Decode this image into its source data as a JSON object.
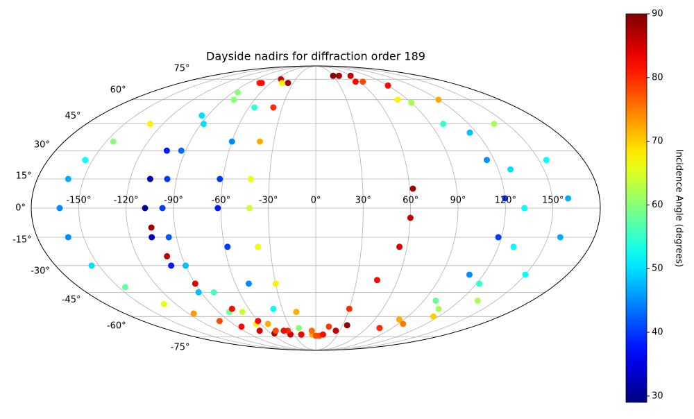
{
  "chart_data": {
    "type": "scatter",
    "projection": "mollweide",
    "title": "Dayside nadirs for diffraction order 189",
    "colorbar_label": "Incidence Angle (degrees)",
    "colormap": "jet",
    "clim": [
      29,
      90
    ],
    "cticks": [
      30,
      40,
      50,
      60,
      70,
      80,
      90
    ],
    "grid": true,
    "xticks": [
      {
        "value": -150,
        "label": "-150°"
      },
      {
        "value": -120,
        "label": "-120°"
      },
      {
        "value": -90,
        "label": "-90°"
      },
      {
        "value": -60,
        "label": "-60°"
      },
      {
        "value": -30,
        "label": "-30°"
      },
      {
        "value": 0,
        "label": "0°"
      },
      {
        "value": 30,
        "label": "30°"
      },
      {
        "value": 60,
        "label": "60°"
      },
      {
        "value": 90,
        "label": "90°"
      },
      {
        "value": 120,
        "label": "120°"
      },
      {
        "value": 150,
        "label": "150°"
      }
    ],
    "yticks": [
      {
        "value": -75,
        "label": "-75°"
      },
      {
        "value": -60,
        "label": "-60°"
      },
      {
        "value": -45,
        "label": "-45°"
      },
      {
        "value": -30,
        "label": "-30°"
      },
      {
        "value": -15,
        "label": "-15°"
      },
      {
        "value": 0,
        "label": "0°"
      },
      {
        "value": 15,
        "label": "15°"
      },
      {
        "value": 30,
        "label": "30°"
      },
      {
        "value": 45,
        "label": "45°"
      },
      {
        "value": 60,
        "label": "60°"
      },
      {
        "value": 75,
        "label": "75°"
      }
    ],
    "x": [
      -130,
      -145,
      -155,
      -160,
      -162,
      -160,
      -155,
      -145,
      -130,
      -115,
      -100,
      -85,
      -70,
      -55,
      -75,
      -85,
      -95,
      -103,
      -107,
      -108,
      -106,
      -100,
      -92,
      -80,
      -65,
      -50,
      -35,
      -72,
      -80,
      -88,
      -93,
      -96,
      -97,
      -95,
      -90,
      -80,
      -68,
      -52,
      -35,
      -20,
      -105,
      -100,
      -90,
      -75,
      -60,
      -40,
      -20,
      -52,
      -45,
      -55,
      -60,
      -62,
      -62,
      -58,
      -50,
      -38,
      -20,
      -5,
      5,
      -37,
      -38,
      -40,
      -42,
      -42,
      -38,
      -30,
      -18,
      -5,
      5,
      62,
      60,
      55,
      45,
      30,
      15,
      0,
      10,
      25,
      35,
      40,
      60,
      90,
      120,
      140,
      155,
      160,
      158,
      150,
      135,
      115,
      30,
      55,
      80,
      100,
      115,
      120,
      118,
      110,
      100,
      85,
      75,
      65,
      90,
      115,
      128,
      132,
      130,
      122,
      110,
      95
    ],
    "y": [
      45,
      35,
      25,
      15,
      0,
      -15,
      -30,
      -42,
      -52,
      -58,
      -63,
      -67,
      -70,
      -72,
      72,
      65,
      50,
      30,
      15,
      0,
      -15,
      -30,
      -45,
      -57,
      -65,
      -70,
      -73,
      72,
      60,
      45,
      30,
      15,
      0,
      -15,
      -30,
      -45,
      -57,
      -65,
      -70,
      -73,
      -10,
      -25,
      -40,
      -55,
      -63,
      -70,
      -73,
      75,
      72,
      55,
      35,
      15,
      0,
      -20,
      -40,
      -55,
      -68,
      -73,
      -74,
      72,
      55,
      35,
      15,
      0,
      -20,
      -40,
      -57,
      -70,
      -74,
      10,
      -5,
      -20,
      -38,
      -55,
      -67,
      -74,
      -73,
      -70,
      -66,
      78,
      78,
      70,
      60,
      45,
      25,
      5,
      -15,
      -35,
      -50,
      -60,
      78,
      73,
      60,
      45,
      25,
      5,
      -15,
      -35,
      -50,
      -62,
      -68,
      73,
      58,
      40,
      20,
      0,
      -20,
      -40,
      -55,
      -65
    ],
    "c": [
      68,
      60,
      52,
      47,
      45,
      45,
      50,
      58,
      66,
      73,
      78,
      82,
      85,
      87,
      80,
      60,
      50,
      38,
      32,
      30,
      32,
      38,
      48,
      58,
      68,
      78,
      85,
      82,
      60,
      50,
      43,
      40,
      40,
      42,
      48,
      56,
      64,
      72,
      80,
      85,
      88,
      86,
      84,
      82,
      82,
      82,
      83,
      85,
      68,
      55,
      45,
      40,
      38,
      40,
      45,
      52,
      60,
      72,
      80,
      88,
      80,
      72,
      66,
      64,
      66,
      68,
      72,
      76,
      78,
      88,
      86,
      84,
      82,
      80,
      79,
      78,
      82,
      86,
      89,
      88,
      86,
      82,
      72,
      62,
      52,
      47,
      47,
      52,
      62,
      70,
      90,
      82,
      68,
      55,
      45,
      40,
      40,
      45,
      58,
      72,
      80,
      78,
      62,
      48,
      50,
      52,
      52,
      55,
      62,
      75
    ]
  }
}
